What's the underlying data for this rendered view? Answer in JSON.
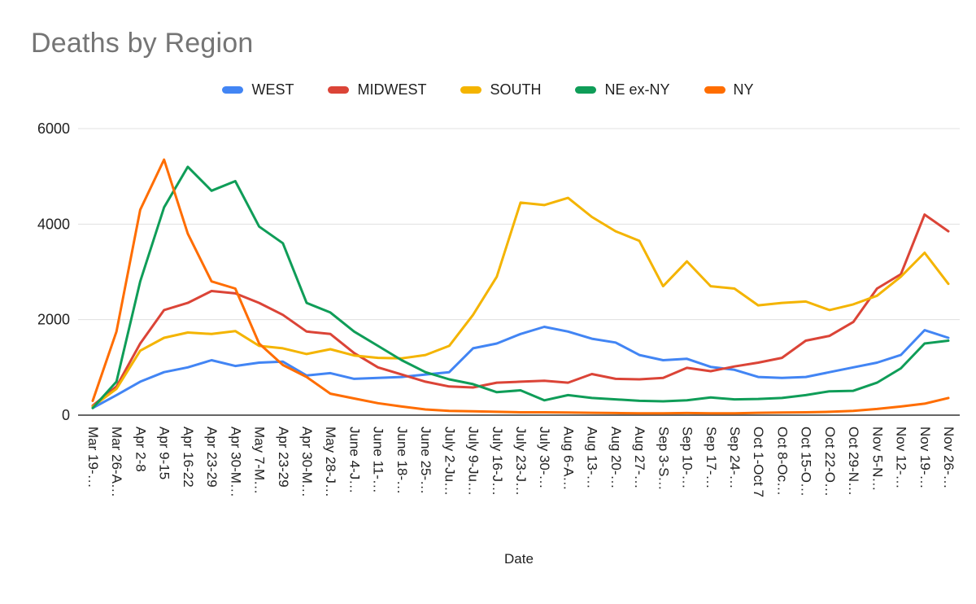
{
  "chart_data": {
    "type": "line",
    "title": "Deaths by Region",
    "xlabel": "Date",
    "ylabel": "",
    "ylim": [
      0,
      6000
    ],
    "yticks": [
      0,
      2000,
      4000,
      6000
    ],
    "grid": true,
    "legend_position": "top",
    "categories": [
      "Mar 19-…",
      "Mar 26-A…",
      "Apr 2-8",
      "Apr 9-15",
      "Apr 16-22",
      "Apr 23-29",
      "Apr 30-M…",
      "May 7-M…",
      "Apr 23-29",
      "Apr 30-M…",
      "May 28-J…",
      "June 4-J…",
      "June 11-…",
      "June 18-…",
      "June 25-…",
      "July 2-Ju…",
      "July 9-Ju…",
      "July 16-J…",
      "July 23-J…",
      "July 30-…",
      "Aug 6-A…",
      "Aug 13-…",
      "Aug 20-…",
      "Aug 27-…",
      "Sep 3-S…",
      "Sep 10-…",
      "Sep 17-…",
      "Sep 24-…",
      "Oct 1-Oct 7",
      "Oct 8-Oc…",
      "Oct 15-O…",
      "Oct 22-O…",
      "Oct 29-N…",
      "Nov 5-N…",
      "Nov 12-…",
      "Nov 19-…",
      "Nov 26-…"
    ],
    "series": [
      {
        "name": "WEST",
        "color": "#4285F4",
        "values": [
          150,
          420,
          700,
          900,
          1000,
          1150,
          1030,
          1100,
          1120,
          830,
          880,
          760,
          780,
          800,
          850,
          900,
          1400,
          1500,
          1700,
          1850,
          1750,
          1600,
          1520,
          1260,
          1150,
          1180,
          1010,
          950,
          800,
          780,
          800,
          900,
          1000,
          1100,
          1260,
          1780,
          1620
        ]
      },
      {
        "name": "MIDWEST",
        "color": "#DB4437",
        "values": [
          200,
          600,
          1500,
          2200,
          2350,
          2600,
          2550,
          2350,
          2100,
          1750,
          1700,
          1300,
          1000,
          850,
          700,
          600,
          580,
          680,
          700,
          720,
          680,
          860,
          760,
          750,
          780,
          990,
          920,
          1020,
          1100,
          1200,
          1560,
          1660,
          1950,
          2650,
          2950,
          4200,
          3850
        ]
      },
      {
        "name": "SOUTH",
        "color": "#F4B400",
        "values": [
          180,
          550,
          1350,
          1620,
          1730,
          1700,
          1760,
          1450,
          1400,
          1280,
          1380,
          1250,
          1200,
          1190,
          1260,
          1450,
          2100,
          2900,
          4450,
          4400,
          4550,
          4150,
          3850,
          3650,
          2700,
          3220,
          2700,
          2650,
          2300,
          2350,
          2380,
          2200,
          2320,
          2500,
          2900,
          3400,
          2750
        ]
      },
      {
        "name": "NE ex-NY",
        "color": "#0F9D58",
        "values": [
          150,
          700,
          2800,
          4350,
          5200,
          4700,
          4900,
          3950,
          3600,
          2350,
          2150,
          1750,
          1450,
          1150,
          900,
          750,
          650,
          480,
          520,
          310,
          420,
          360,
          330,
          300,
          290,
          310,
          370,
          330,
          340,
          360,
          420,
          500,
          510,
          680,
          980,
          1500,
          1560
        ]
      },
      {
        "name": "NY",
        "color": "#FF6D00",
        "values": [
          300,
          1750,
          4300,
          5350,
          3800,
          2800,
          2650,
          1500,
          1050,
          800,
          450,
          350,
          250,
          180,
          120,
          90,
          80,
          70,
          60,
          60,
          55,
          50,
          45,
          40,
          40,
          45,
          40,
          40,
          50,
          55,
          60,
          70,
          90,
          130,
          180,
          240,
          360
        ]
      }
    ],
    "axis_colors": {
      "gridline": "#e0e0e0",
      "baseline": "#333333",
      "tick_label": "#222222",
      "axis_title": "#222222"
    }
  }
}
